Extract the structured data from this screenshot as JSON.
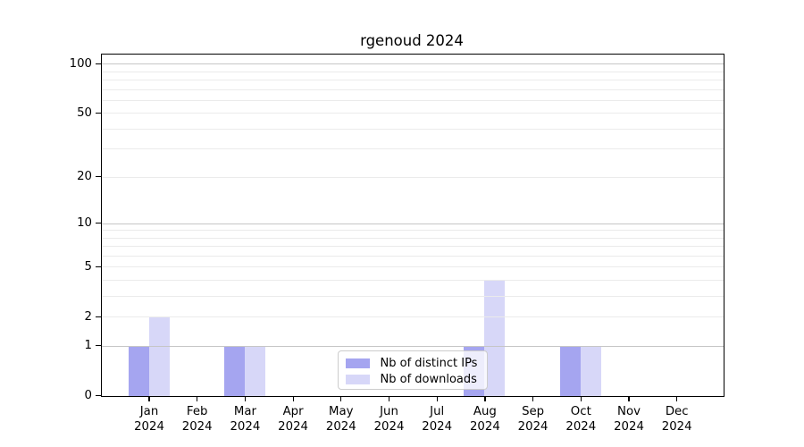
{
  "title": "rgenoud 2024",
  "chart_data": {
    "type": "bar",
    "title": "rgenoud 2024",
    "categories": [
      {
        "month": "Jan",
        "year": "2024"
      },
      {
        "month": "Feb",
        "year": "2024"
      },
      {
        "month": "Mar",
        "year": "2024"
      },
      {
        "month": "Apr",
        "year": "2024"
      },
      {
        "month": "May",
        "year": "2024"
      },
      {
        "month": "Jun",
        "year": "2024"
      },
      {
        "month": "Jul",
        "year": "2024"
      },
      {
        "month": "Aug",
        "year": "2024"
      },
      {
        "month": "Sep",
        "year": "2024"
      },
      {
        "month": "Oct",
        "year": "2024"
      },
      {
        "month": "Nov",
        "year": "2024"
      },
      {
        "month": "Dec",
        "year": "2024"
      }
    ],
    "series": [
      {
        "name": "Nb of distinct IPs",
        "color": "#a5a5f0",
        "values": [
          1,
          0,
          1,
          0,
          0,
          0,
          0,
          1,
          0,
          1,
          0,
          0
        ]
      },
      {
        "name": "Nb of downloads",
        "color": "#d7d7f8",
        "values": [
          2,
          0,
          1,
          0,
          0,
          0,
          0,
          4,
          0,
          1,
          0,
          0
        ]
      }
    ],
    "xlabel": "",
    "ylabel": "",
    "y_axis": {
      "scale": "log1p",
      "tick_values": [
        0,
        1,
        2,
        5,
        10,
        20,
        50,
        100
      ],
      "major_grid_values": [
        1,
        10,
        100
      ],
      "minor_grid_values": [
        2,
        3,
        4,
        5,
        6,
        7,
        8,
        9,
        20,
        30,
        40,
        50,
        60,
        70,
        80,
        90
      ],
      "ylim": [
        0,
        112
      ]
    },
    "grid": "horizontal",
    "legend_position": "inside lower center-right",
    "colors": {
      "major_grid": "#c6c6c6",
      "minor_grid": "#ebebeb",
      "spine": "#000000",
      "background": "#ffffff",
      "text": "#000000"
    }
  }
}
